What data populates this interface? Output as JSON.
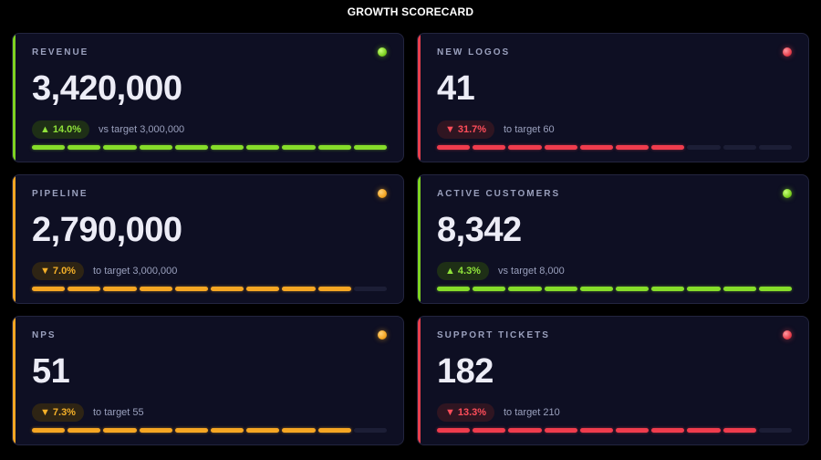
{
  "page_title": "GROWTH SCORECARD",
  "colors": {
    "good": "#7ed321",
    "warn": "#f5a623",
    "bad": "#e8404d",
    "card_bg": "#0e0f23",
    "page_bg": "#000000"
  },
  "cards": [
    {
      "label": "REVENUE",
      "value": "3,420,000",
      "status": "good",
      "indicator_icon": "status-dot-icon",
      "arrow": "▲",
      "delta": "14.0%",
      "target_text": "vs target 3,000,000",
      "segments_filled": 10,
      "segments_total": 10
    },
    {
      "label": "NEW LOGOS",
      "value": "41",
      "status": "bad",
      "indicator_icon": "status-dot-icon",
      "arrow": "▼",
      "delta": "31.7%",
      "target_text": "to target 60",
      "segments_filled": 7,
      "segments_total": 10
    },
    {
      "label": "PIPELINE",
      "value": "2,790,000",
      "status": "warn",
      "indicator_icon": "status-dot-icon",
      "arrow": "▼",
      "delta": "7.0%",
      "target_text": "to target 3,000,000",
      "segments_filled": 9,
      "segments_total": 10
    },
    {
      "label": "ACTIVE CUSTOMERS",
      "value": "8,342",
      "status": "good",
      "indicator_icon": "status-dot-icon",
      "arrow": "▲",
      "delta": "4.3%",
      "target_text": "vs target 8,000",
      "segments_filled": 10,
      "segments_total": 10
    },
    {
      "label": "NPS",
      "value": "51",
      "status": "warn",
      "indicator_icon": "status-dot-icon",
      "arrow": "▼",
      "delta": "7.3%",
      "target_text": "to target 55",
      "segments_filled": 9,
      "segments_total": 10
    },
    {
      "label": "SUPPORT TICKETS",
      "value": "182",
      "status": "bad",
      "indicator_icon": "status-dot-icon",
      "arrow": "▼",
      "delta": "13.3%",
      "target_text": "to target 210",
      "segments_filled": 9,
      "segments_total": 10
    }
  ]
}
